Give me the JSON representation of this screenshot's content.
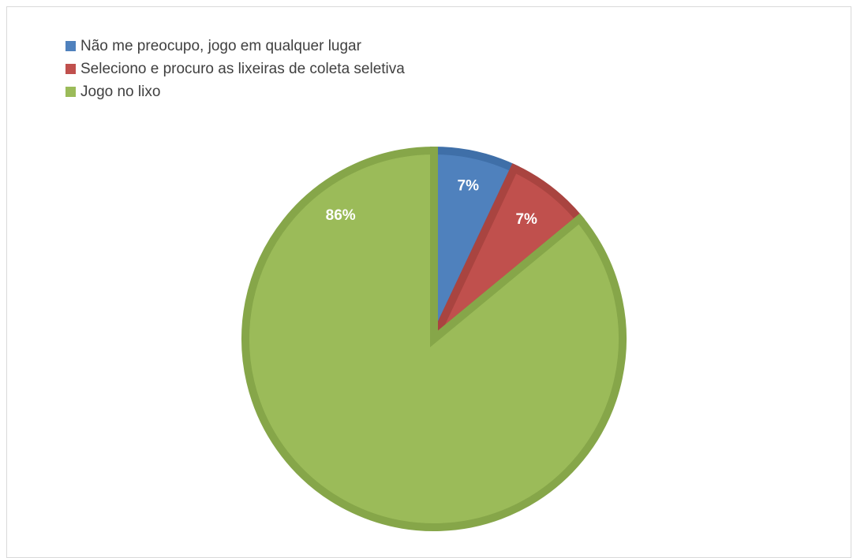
{
  "chart_data": {
    "type": "pie",
    "title": "",
    "categories": [
      "Não me preocupo, jogo em qualquer lugar",
      "Seleciono e procuro as lixeiras de coleta seletiva",
      "Jogo no lixo"
    ],
    "values": [
      7,
      7,
      86
    ],
    "labels": [
      "7%",
      "7%",
      "86%"
    ],
    "colors": [
      "#4f81bd",
      "#c0504d",
      "#9bbb59"
    ],
    "border_colors": [
      "#3f6fa8",
      "#a94440",
      "#86a649"
    ],
    "legend_position": "top-left",
    "start_angle_deg": 0,
    "direction": "clockwise"
  }
}
